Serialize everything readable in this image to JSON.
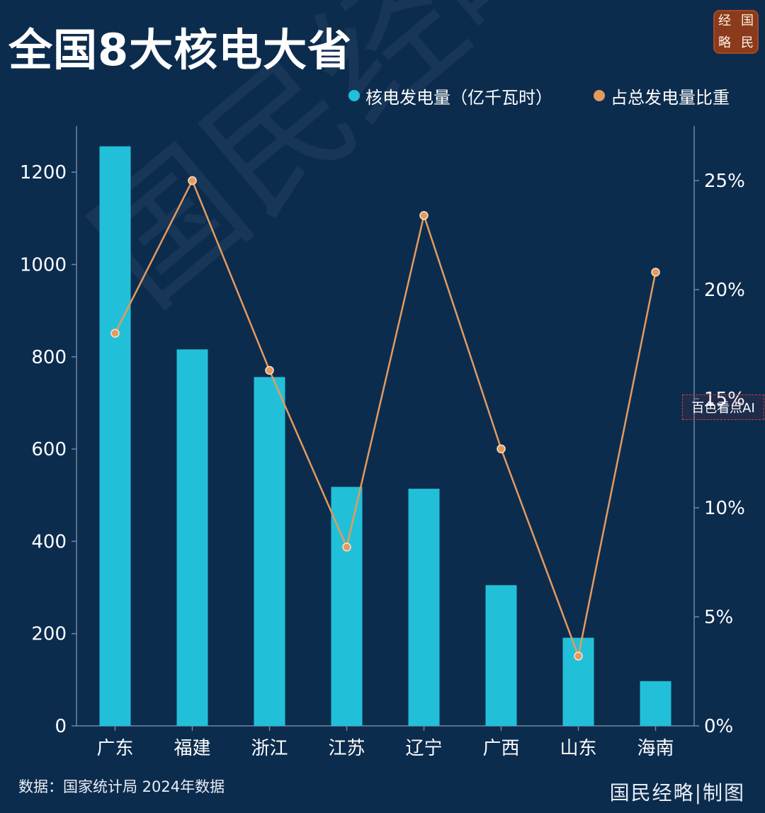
{
  "title": "全国8大核电大省",
  "seal": [
    "经",
    "国",
    "略",
    "民"
  ],
  "legend": {
    "bar_label": "核电发电量（亿千瓦时）",
    "line_label": "占总发电量比重"
  },
  "footer": {
    "source": "数据：国家统计局 2024年数据",
    "brand": "国民经略|制图"
  },
  "watermark": "国民经略",
  "ai_tag": "百色看点AI",
  "colors": {
    "bar": "#22c0d8",
    "line": "#e59a5d",
    "background": "#0c2c4e"
  },
  "chart_data": {
    "type": "bar",
    "categories": [
      "广东",
      "福建",
      "浙江",
      "江苏",
      "辽宁",
      "广西",
      "山东",
      "海南"
    ],
    "series": [
      {
        "name": "核电发电量（亿千瓦时）",
        "type": "bar",
        "axis": "left",
        "values": [
          1256,
          816,
          756,
          518,
          514,
          305,
          191,
          97
        ]
      },
      {
        "name": "占总发电量比重",
        "type": "line",
        "axis": "right",
        "values": [
          18.0,
          25.0,
          16.3,
          8.2,
          23.4,
          12.7,
          3.2,
          20.8
        ]
      }
    ],
    "ylim_left": [
      0,
      1300
    ],
    "yticks_left": [
      0,
      200,
      400,
      600,
      800,
      1000,
      1200
    ],
    "ylim_right": [
      0,
      27.5
    ],
    "yticks_right": [
      "0%",
      "5%",
      "10%",
      "15%",
      "20%",
      "25%"
    ],
    "yticks_right_values": [
      0,
      5,
      10,
      15,
      20,
      25
    ],
    "grid": false,
    "legend_position": "top-right"
  }
}
